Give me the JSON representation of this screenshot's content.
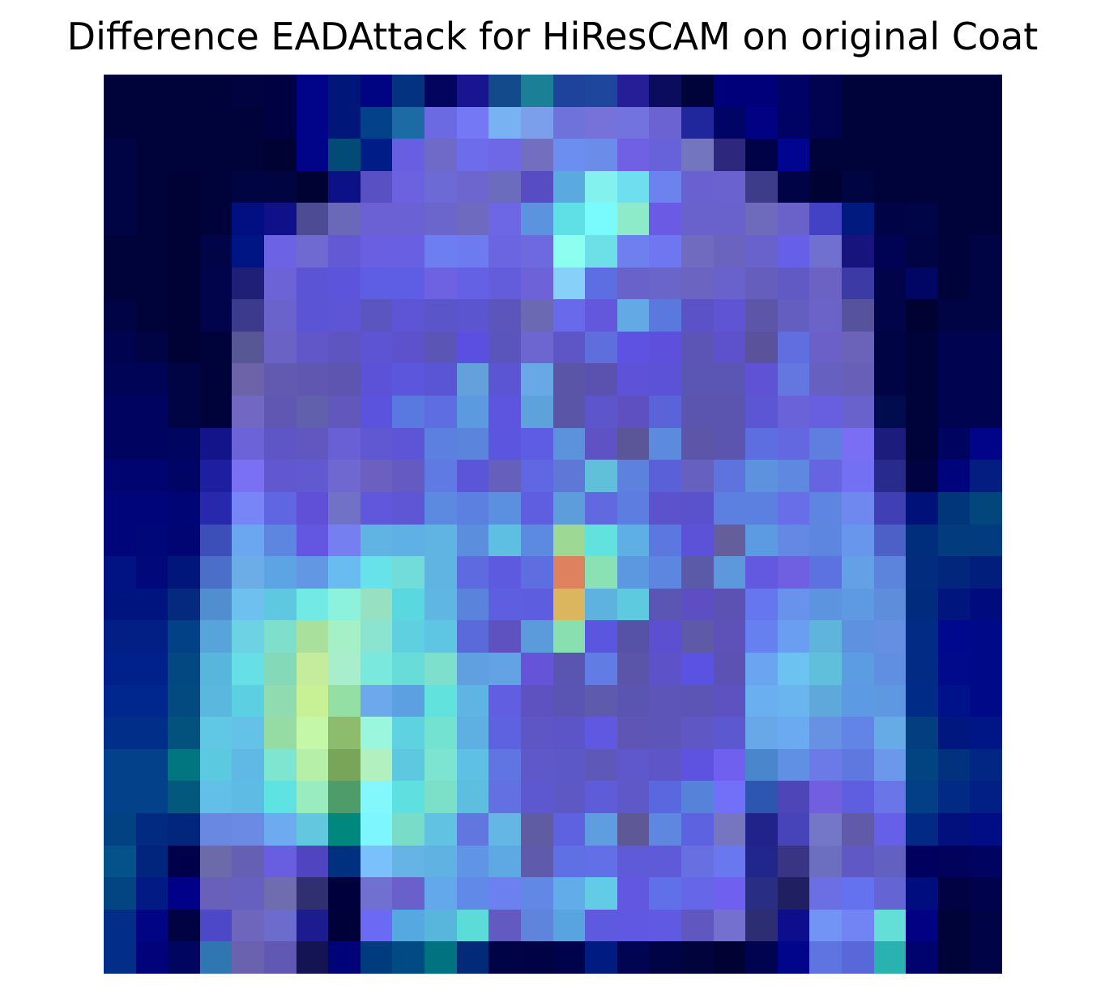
{
  "chart_data": {
    "type": "heatmap",
    "title": "Difference EADAttack for HiResCAM on original Coat",
    "xlabel": "",
    "ylabel": "",
    "axes_visible": false,
    "grid": false,
    "rows": 28,
    "cols": 28,
    "cells": [
      [
        "#000339",
        "#000339",
        "#00023a",
        "#00023a",
        "#00033f",
        "#000142",
        "#010388",
        "#001679",
        "#000482",
        "#033281",
        "#02045d",
        "#191591",
        "#134a8c",
        "#1b7f95",
        "#1d439c",
        "#1d469c",
        "#251e96",
        "#0b0c5d",
        "#00023a",
        "#00007a",
        "#00007a",
        "#000266",
        "#010350",
        "#00023a",
        "#000339",
        "#000339",
        "#00023a",
        "#00023a"
      ],
      [
        "#000339",
        "#000339",
        "#00023a",
        "#00023a",
        "#00023a",
        "#000142",
        "#010388",
        "#001679",
        "#03428a",
        "#1c6ba5",
        "#6c6ae2",
        "#7478f5",
        "#78b2f2",
        "#7c9fec",
        "#6e73db",
        "#7672da",
        "#7373e0",
        "#6b63d1",
        "#20279c",
        "#000565",
        "#000284",
        "#000264",
        "#010350",
        "#00023a",
        "#000339",
        "#000339",
        "#00023a",
        "#00023a"
      ],
      [
        "#000344",
        "#000339",
        "#00023a",
        "#00023a",
        "#00023a",
        "#000233",
        "#010388",
        "#024b77",
        "#001c86",
        "#685ee1",
        "#6f69c8",
        "#6d6ceb",
        "#6e67e6",
        "#726ec0",
        "#6b8ef0",
        "#6b8ce8",
        "#6f60e4",
        "#6862da",
        "#7376bf",
        "#2d287d",
        "#000247",
        "#00048e",
        "#00023a",
        "#00023a",
        "#000339",
        "#000339",
        "#00023a",
        "#00023a"
      ],
      [
        "#000344",
        "#000339",
        "#000236",
        "#00023a",
        "#000542",
        "#000542",
        "#000233",
        "#0c1186",
        "#5950c4",
        "#6c61de",
        "#6c6ad4",
        "#6e66cf",
        "#6c6cbf",
        "#574cc1",
        "#5baadf",
        "#83f2ef",
        "#6fdeee",
        "#6c82ee",
        "#6a61d0",
        "#6a62ce",
        "#3c3c8a",
        "#000447",
        "#000233",
        "#000542",
        "#00023a",
        "#000339",
        "#00023a",
        "#00023a"
      ],
      [
        "#000344",
        "#000339",
        "#000236",
        "#00023a",
        "#010f82",
        "#10108a",
        "#4c4b93",
        "#6a69b9",
        "#6b61d4",
        "#6a62d4",
        "#6b66cc",
        "#6e6ac0",
        "#6d67e6",
        "#5c93de",
        "#5fe0e7",
        "#79fbfd",
        "#8eebca",
        "#6a5ae4",
        "#6a62cc",
        "#6a62cc",
        "#6e6bbd",
        "#6a62c9",
        "#4341c4",
        "#011a7f",
        "#000447",
        "#000548",
        "#000339",
        "#00023a"
      ],
      [
        "#000339",
        "#000339",
        "#000236",
        "#010447",
        "#001584",
        "#6b63e4",
        "#6e6ad2",
        "#6459d4",
        "#6a5ee1",
        "#695fe3",
        "#6c7ef0",
        "#6c7cf0",
        "#6c65e1",
        "#6d6ae0",
        "#8dfff0",
        "#6de0e7",
        "#6e80ed",
        "#6f77f0",
        "#706bbf",
        "#6b64be",
        "#6a62cc",
        "#6660e8",
        "#7070d0",
        "#17147d",
        "#000354",
        "#000344",
        "#000339",
        "#000344"
      ],
      [
        "#000339",
        "#000339",
        "#000236",
        "#01044a",
        "#201f77",
        "#6b63d6",
        "#5b55d6",
        "#5d54dc",
        "#5e5ee4",
        "#5e5ee4",
        "#6e62e2",
        "#6461e4",
        "#635ddc",
        "#6d62d8",
        "#86d0fa",
        "#5d6ee2",
        "#6862ca",
        "#6a65c8",
        "#6b64c0",
        "#6a62cc",
        "#665ebc",
        "#625ac4",
        "#6c62c4",
        "#3c3aa4",
        "#010449",
        "#010563",
        "#000339",
        "#000344"
      ],
      [
        "#000344",
        "#000339",
        "#000236",
        "#01044a",
        "#3b3a8c",
        "#6b63cc",
        "#5b55d6",
        "#5d54d6",
        "#5b55c0",
        "#5e55d6",
        "#5a55c8",
        "#5c55d0",
        "#5b55bc",
        "#6b69b2",
        "#6969ec",
        "#6357dc",
        "#63a9e6",
        "#5a78de",
        "#5c52c8",
        "#5e54d4",
        "#5c55a8",
        "#645ec1",
        "#6c63c8",
        "#56529c",
        "#010449",
        "#000232",
        "#000344",
        "#000344"
      ],
      [
        "#00034f",
        "#000344",
        "#000236",
        "#00023a",
        "#575796",
        "#6b62c6",
        "#6157c8",
        "#5e55c0",
        "#5d54d4",
        "#5e52cc",
        "#5b55b6",
        "#5b4fe2",
        "#5a55bc",
        "#6e66d0",
        "#5e55c6",
        "#5e6edc",
        "#5e52e2",
        "#5c50dc",
        "#5c55b6",
        "#5d52cc",
        "#5a529a",
        "#606ee0",
        "#6a60c8",
        "#6b63ba",
        "#000344",
        "#000339",
        "#00034f",
        "#00034f"
      ],
      [
        "#000456",
        "#000456",
        "#000344",
        "#00023a",
        "#6c63a8",
        "#6259b0",
        "#6058b0",
        "#5e55b0",
        "#5b52d8",
        "#5b56dc",
        "#5a55d4",
        "#63a0dc",
        "#5b55d4",
        "#68a8e6",
        "#5b55a8",
        "#5b52b0",
        "#5e52d8",
        "#5c52d8",
        "#5b55b4",
        "#5b55b4",
        "#5f52d4",
        "#6476e0",
        "#6660c0",
        "#6860b8",
        "#000344",
        "#000339",
        "#00034f",
        "#00034f"
      ],
      [
        "#000460",
        "#000460",
        "#000344",
        "#00023a",
        "#7268c4",
        "#6057b2",
        "#6060ac",
        "#6257ba",
        "#5b52de",
        "#5a79e0",
        "#5e6de2",
        "#5c9ae0",
        "#5d55e0",
        "#5ea2dc",
        "#5b55a8",
        "#5d55cc",
        "#5e50c0",
        "#5a64d8",
        "#5c55b0",
        "#5c55b0",
        "#5c55d4",
        "#6a62d8",
        "#685ee0",
        "#6a62cc",
        "#000c4d",
        "#000339",
        "#000350",
        "#000350"
      ],
      [
        "#000460",
        "#000460",
        "#000560",
        "#13148a",
        "#6c63d8",
        "#5e55c6",
        "#6257c0",
        "#6a60d6",
        "#6057d2",
        "#5d55d6",
        "#5c80e0",
        "#5b84dc",
        "#5b55e0",
        "#5d5ce2",
        "#5c92dc",
        "#5e52c4",
        "#5a5698",
        "#5c8adc",
        "#5c55a8",
        "#5c55b0",
        "#5c6ee0",
        "#6468e0",
        "#607ee0",
        "#7a6ef4",
        "#1b1c7c",
        "#000339",
        "#000461",
        "#010388"
      ],
      [
        "#000470",
        "#000470",
        "#000565",
        "#1e1fa0",
        "#7a70f4",
        "#6158d0",
        "#6159cf",
        "#6f68d0",
        "#6b5fc0",
        "#6559c2",
        "#5f7ae2",
        "#5b56d8",
        "#6560bc",
        "#5f68e2",
        "#5f78d8",
        "#60c0da",
        "#5c82de",
        "#5a60d8",
        "#6660c0",
        "#5f73de",
        "#5c92de",
        "#5f88e0",
        "#6664e0",
        "#7470f4",
        "#282a8c",
        "#000340",
        "#00047c",
        "#031d80"
      ],
      [
        "#00057a",
        "#00057a",
        "#000575",
        "#2728ac",
        "#7885f6",
        "#6066e2",
        "#6050d8",
        "#7072c8",
        "#6157dc",
        "#5f56d6",
        "#5c8ae0",
        "#5b80e0",
        "#5b8fe0",
        "#5f5de0",
        "#5e9ddc",
        "#6168e0",
        "#5d7ee0",
        "#5c53cc",
        "#5a52cc",
        "#5b80e0",
        "#5b80e0",
        "#686ee8",
        "#5e86e0",
        "#6e88f0",
        "#4040b4",
        "#00117a",
        "#01367a",
        "#02467b"
      ],
      [
        "#00057a",
        "#000879",
        "#000574",
        "#3c4fb9",
        "#6ba7f0",
        "#5d86e0",
        "#6356e0",
        "#767ff0",
        "#60b4e4",
        "#5fb0e4",
        "#5fb4e2",
        "#5c8ede",
        "#5fbfe2",
        "#5c8ae0",
        "#9dd994",
        "#62e2dc",
        "#5eb0e4",
        "#5c77e0",
        "#5c52d8",
        "#645e9c",
        "#5c9ae2",
        "#6489e4",
        "#5d86e0",
        "#6896ec",
        "#4c60c8",
        "#012e7c",
        "#023c7e",
        "#023c7e"
      ],
      [
        "#011382",
        "#01087a",
        "#00167a",
        "#4b6ec8",
        "#6cade8",
        "#5da4e4",
        "#6297e4",
        "#68bcf0",
        "#66e2e8",
        "#72dcd8",
        "#5fb4e2",
        "#5d6ae0",
        "#5e5ae0",
        "#5d6ee0",
        "#de815e",
        "#8ae2b4",
        "#5c98e0",
        "#5c86e0",
        "#5b5aa8",
        "#5d98dc",
        "#6259e0",
        "#6e60e0",
        "#5b72e0",
        "#63a0e6",
        "#5c84dc",
        "#022c7e",
        "#01267c",
        "#011e7c"
      ],
      [
        "#00147f",
        "#00147f",
        "#032a7e",
        "#508ed0",
        "#6ec0ee",
        "#5dc8e0",
        "#72eae4",
        "#8df2dc",
        "#98e0c2",
        "#5ad8e0",
        "#5fb6e2",
        "#5a84dc",
        "#5e5fe0",
        "#5d5de0",
        "#dcb65e",
        "#5eb2e0",
        "#5dcae0",
        "#5b56b4",
        "#5e4ec4",
        "#5b52b4",
        "#6676ee",
        "#6992ec",
        "#5d94e0",
        "#5e9ae2",
        "#5e8ddc",
        "#012b7c",
        "#00157e",
        "#000c7e"
      ],
      [
        "#011f84",
        "#011f84",
        "#034186",
        "#56a4da",
        "#6cd2e4",
        "#7ee0cc",
        "#a8e09c",
        "#a6f0c8",
        "#8ae4d0",
        "#5fd0e0",
        "#5ec6e2",
        "#5a6ad8",
        "#5e52c0",
        "#5b9bdc",
        "#8adfb0",
        "#5b56e0",
        "#5652a8",
        "#5c50d0",
        "#5e5aa8",
        "#5e52b8",
        "#6680f0",
        "#6a9ef0",
        "#5fb4dc",
        "#5e92e0",
        "#6590e2",
        "#012b84",
        "#00088e",
        "#000a88"
      ],
      [
        "#00218a",
        "#00218a",
        "#044882",
        "#58b6dc",
        "#66e0e6",
        "#84dab8",
        "#c4ec9c",
        "#a8eecc",
        "#7ae8dc",
        "#68dcd8",
        "#7ce0cc",
        "#60a0e0",
        "#64a2e6",
        "#6654d8",
        "#5a55b0",
        "#627ce6",
        "#5a55a8",
        "#5d52c8",
        "#5a52e0",
        "#5c52b4",
        "#6ba4f0",
        "#6cc2f0",
        "#60c0dc",
        "#5b9ce2",
        "#608ee0",
        "#012b85",
        "#000a8a",
        "#000a88"
      ],
      [
        "#00278d",
        "#00278d",
        "#034a80",
        "#5ab8de",
        "#5cd0e2",
        "#90dcb0",
        "#c8f094",
        "#94e0a4",
        "#6ea8ec",
        "#5ca0e2",
        "#62e2dc",
        "#5eb4e2",
        "#615ee2",
        "#5e52c0",
        "#5a55b2",
        "#5e5aac",
        "#5a55b0",
        "#5e55b8",
        "#5d55b6",
        "#5e52c0",
        "#6ab0f0",
        "#6ab4f0",
        "#5ea8dc",
        "#5d9ae4",
        "#5e98e0",
        "#002b86",
        "#00128a",
        "#000a88"
      ],
      [
        "#012e89",
        "#012e89",
        "#03527e",
        "#60c8e4",
        "#64c2e8",
        "#94dca4",
        "#c4f8a8",
        "#8cbc6c",
        "#9af6dc",
        "#5ed2e0",
        "#74e2d0",
        "#5fb0e2",
        "#5e62e0",
        "#5e56c4",
        "#5c55c8",
        "#6058e0",
        "#5e55b4",
        "#5e55b8",
        "#5f58c4",
        "#5c58d0",
        "#68a8e8",
        "#6baaf0",
        "#6792e4",
        "#6284e6",
        "#66aae6",
        "#023e80",
        "#001780",
        "#001586"
      ],
      [
        "#03428a",
        "#03428a",
        "#027680",
        "#5bcae0",
        "#60b8e4",
        "#7ee6d0",
        "#b6f0a8",
        "#78a658",
        "#b2f0c0",
        "#5ec8e0",
        "#7ce4d0",
        "#5ec0e2",
        "#6074e2",
        "#5e58c8",
        "#5c58c8",
        "#5e58b8",
        "#5e58cc",
        "#5e55c8",
        "#5e52e0",
        "#7060f0",
        "#4a86cc",
        "#6090e4",
        "#6c7ae8",
        "#5e78e0",
        "#6c98ec",
        "#024382",
        "#02327e",
        "#012684"
      ],
      [
        "#03428a",
        "#03428a",
        "#03587e",
        "#62c0e8",
        "#5ebce4",
        "#5ee2e2",
        "#98ecc0",
        "#4e9c6a",
        "#82f8fc",
        "#5ee0e0",
        "#7ce0c8",
        "#5ebee0",
        "#6270e2",
        "#5e58d0",
        "#5e58c4",
        "#5e5cd8",
        "#5e58c8",
        "#5a68e0",
        "#5682da",
        "#7270f8",
        "#2d56b0",
        "#4e46b8",
        "#7060e0",
        "#5e5ee0",
        "#6a76e8",
        "#023f84",
        "#002a84",
        "#011f84"
      ],
      [
        "#024282",
        "#022a80",
        "#01267c",
        "#6988e0",
        "#6a8ae4",
        "#6eaaf0",
        "#62c8e0",
        "#00877e",
        "#7ef6fe",
        "#78dcc8",
        "#62c2e2",
        "#6276e0",
        "#64b6e4",
        "#605ca4",
        "#5e62e0",
        "#5e9ee0",
        "#5e5896",
        "#5e88e0",
        "#5d62e0",
        "#7676c0",
        "#22238a",
        "#4644b8",
        "#7476c8",
        "#605aa8",
        "#6660e8",
        "#022a84",
        "#01107c",
        "#010d84"
      ],
      [
        "#03528a",
        "#01247c",
        "#00004a",
        "#6c6aa8",
        "#6660b4",
        "#6a5ee0",
        "#5044c0",
        "#003080",
        "#7ac0fa",
        "#66b4e6",
        "#5fb2e2",
        "#6094e4",
        "#5ea8e4",
        "#5e5aac",
        "#5f70e4",
        "#6270e8",
        "#5e5ad8",
        "#5e5ad8",
        "#6670e0",
        "#6a78f0",
        "#20268c",
        "#3a3484",
        "#6c6ec0",
        "#6058c4",
        "#6260c0",
        "#00015e",
        "#00025c",
        "#000460"
      ],
      [
        "#034482",
        "#011a84",
        "#000188",
        "#6960ba",
        "#6660c0",
        "#6f6cb0",
        "#303070",
        "#00003c",
        "#7070d0",
        "#6a60cc",
        "#64a8ec",
        "#5f8ae8",
        "#6c80f0",
        "#6288e6",
        "#62acea",
        "#62cce6",
        "#6258e0",
        "#6070e8",
        "#6666e8",
        "#7060f0",
        "#2a2d84",
        "#201f62",
        "#6c6ee4",
        "#6572f0",
        "#6564d4",
        "#000d7e",
        "#000244",
        "#00024c"
      ],
      [
        "#022e88",
        "#010483",
        "#000242",
        "#4c48c8",
        "#6e66bc",
        "#6c6ccc",
        "#1c1c90",
        "#000138",
        "#6a6af4",
        "#56a8e0",
        "#58b6dc",
        "#5cdcd8",
        "#625ac0",
        "#5e84dc",
        "#58a4e0",
        "#5e5ae0",
        "#6058e2",
        "#605ae2",
        "#6058c0",
        "#7470d0",
        "#2d2d74",
        "#0c0e8e",
        "#7294f4",
        "#7284f4",
        "#66ded8",
        "#000284",
        "#000338",
        "#000346"
      ],
      [
        "#022e88",
        "#00037a",
        "#000560",
        "#2f76b2",
        "#6a62ae",
        "#6058b2",
        "#141453",
        "#000378",
        "#003c7d",
        "#004b83",
        "#007280",
        "#022a78",
        "#000346",
        "#000246",
        "#00024c",
        "#001c80",
        "#000452",
        "#000344",
        "#00033c",
        "#000234",
        "#000350",
        "#000589",
        "#5e74e0",
        "#5968d8",
        "#2ab2b0",
        "#00026e",
        "#000338",
        "#000346"
      ]
    ]
  }
}
